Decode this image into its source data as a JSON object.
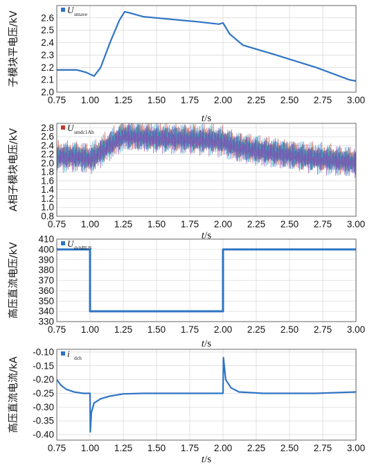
{
  "chart_data": [
    {
      "type": "line",
      "ylabel": "子模块平电压/kV",
      "xlabel": {
        "var": "t",
        "unit": "/s"
      },
      "legend": {
        "symbol": "U",
        "subscript": "smave"
      },
      "xlim": [
        0.75,
        3.0
      ],
      "ylim": [
        2.0,
        2.7
      ],
      "xticks": [
        "0.75",
        "1.00",
        "1.25",
        "1.50",
        "1.75",
        "2.00",
        "2.25",
        "2.50",
        "2.75",
        "3.00"
      ],
      "yticks": [
        "2.0",
        "2.1",
        "2.2",
        "2.3",
        "2.4",
        "2.5",
        "2.6"
      ],
      "series": [
        {
          "color": "#2e74c4",
          "x": [
            0.75,
            0.9,
            0.97,
            1.03,
            1.08,
            1.15,
            1.22,
            1.26,
            1.3,
            1.4,
            1.6,
            1.8,
            1.97,
            2.0,
            2.05,
            2.15,
            2.4,
            2.7,
            2.95,
            3.0
          ],
          "y": [
            2.18,
            2.18,
            2.16,
            2.13,
            2.2,
            2.4,
            2.58,
            2.65,
            2.64,
            2.61,
            2.59,
            2.57,
            2.55,
            2.56,
            2.47,
            2.38,
            2.3,
            2.2,
            2.1,
            2.09
          ]
        }
      ]
    },
    {
      "type": "line",
      "ylabel": "A相子模块电压/kV",
      "xlabel": {
        "var": "t",
        "unit": "/s"
      },
      "legend": {
        "symbol": "U",
        "subscript": "smdc1Ah"
      },
      "xlim": [
        0.75,
        3.0
      ],
      "ylim": [
        0.8,
        2.9
      ],
      "xticks": [
        "0.75",
        "1.00",
        "1.25",
        "1.50",
        "1.75",
        "2.00",
        "2.25",
        "2.50",
        "2.75",
        "3.00"
      ],
      "yticks": [
        "0.8",
        "1.0",
        "1.2",
        "1.4",
        "1.6",
        "1.8",
        "2.0",
        "2.2",
        "2.4",
        "2.6",
        "2.8"
      ],
      "envelope": {
        "x": [
          0.75,
          0.9,
          1.0,
          1.05,
          1.15,
          1.25,
          1.3,
          1.5,
          1.7,
          1.9,
          2.0,
          2.1,
          2.3,
          2.6,
          2.9,
          3.0
        ],
        "y": [
          2.18,
          2.18,
          2.13,
          2.22,
          2.45,
          2.65,
          2.64,
          2.6,
          2.58,
          2.56,
          2.52,
          2.4,
          2.3,
          2.18,
          2.08,
          2.05
        ]
      },
      "ripple_amplitude_kV": 0.35,
      "series": [
        {
          "color": "#c0392b"
        },
        {
          "color": "#2e74c4"
        },
        {
          "color": "#27b3c6"
        },
        {
          "color": "#8e44ad"
        }
      ]
    },
    {
      "type": "line",
      "ylabel": "高压直流电压/kV",
      "xlabel": {
        "var": "t",
        "unit": "/s"
      },
      "legend": {
        "symbol": "U",
        "subscript": "dchBUS"
      },
      "xlim": [
        0.75,
        3.0
      ],
      "ylim": [
        330,
        410
      ],
      "xticks": [
        "0.75",
        "1.00",
        "1.25",
        "1.50",
        "1.75",
        "2.00",
        "2.25",
        "2.50",
        "2.75",
        "3.00"
      ],
      "yticks": [
        "330",
        "340",
        "350",
        "360",
        "370",
        "380",
        "390",
        "400",
        "410"
      ],
      "series": [
        {
          "color": "#2e74c4",
          "x": [
            0.75,
            1.0,
            1.0,
            2.0,
            2.0,
            3.0
          ],
          "y": [
            400,
            400,
            340,
            340,
            400,
            400
          ]
        }
      ]
    },
    {
      "type": "line",
      "ylabel": "高压直流电流/kA",
      "xlabel": {
        "var": "t",
        "unit": "/s"
      },
      "legend": {
        "symbol": "i",
        "subscript": "dch"
      },
      "xlim": [
        0.75,
        3.0
      ],
      "ylim": [
        -0.42,
        -0.09
      ],
      "xticks": [
        "0.75",
        "1.00",
        "1.25",
        "1.50",
        "1.75",
        "2.00",
        "2.25",
        "2.50",
        "2.75",
        "3.00"
      ],
      "yticks": [
        "-0.10",
        "-0.15",
        "-0.20",
        "-0.25",
        "-0.30",
        "-0.35",
        "-0.40"
      ],
      "series": [
        {
          "color": "#2e74c4",
          "x": [
            0.75,
            0.78,
            0.82,
            0.88,
            0.95,
            0.99,
            1.0,
            1.002,
            1.01,
            1.03,
            1.08,
            1.15,
            1.25,
            1.4,
            1.7,
            1.99,
            2.0,
            2.003,
            2.02,
            2.06,
            2.12,
            2.3,
            2.7,
            3.0
          ],
          "y": [
            -0.2,
            -0.22,
            -0.235,
            -0.245,
            -0.25,
            -0.25,
            -0.25,
            -0.39,
            -0.32,
            -0.285,
            -0.27,
            -0.26,
            -0.252,
            -0.25,
            -0.25,
            -0.25,
            -0.25,
            -0.12,
            -0.2,
            -0.23,
            -0.245,
            -0.25,
            -0.25,
            -0.245
          ]
        }
      ]
    }
  ]
}
